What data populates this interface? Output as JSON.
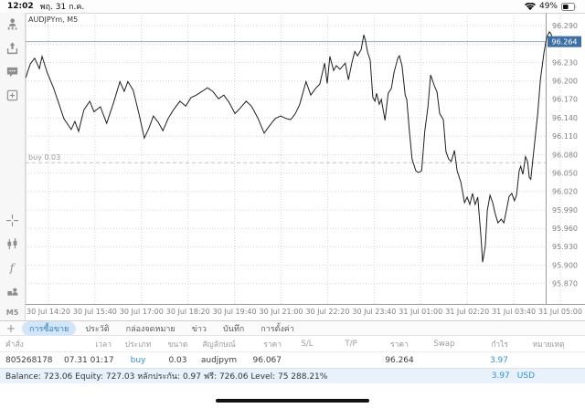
{
  "status_bar": {
    "time": "12:02",
    "date": "พฤ. 31 ก.ค.",
    "battery": "49%"
  },
  "sidebar": {
    "icons": [
      "account-stats",
      "share-up",
      "chat",
      "new-window",
      "crosshair",
      "chart-type",
      "indicators",
      "objects"
    ],
    "timeframe": "M5"
  },
  "chart": {
    "title": "AUDJPYm, M5",
    "position_label": "buy 0.03",
    "current_price_label": "96.264",
    "colors": {
      "line": "#1e1e1e",
      "grid": "#d4d4d4",
      "axis": "#9a9a9a",
      "current_price_line": "#93a9c4",
      "badge": "#3d6fa5",
      "buy_line": "#c2c2c2",
      "tick_text": "#808080"
    }
  },
  "chart_data": {
    "type": "line",
    "title": "AUDJPYm, M5",
    "symbol": "AUDJPYm",
    "timeframe": "M5",
    "ylabel": "price",
    "ylim": [
      95.837,
      96.311
    ],
    "grid": true,
    "y_ticks": [
      "96.290",
      "96.260",
      "96.230",
      "96.200",
      "96.170",
      "96.140",
      "96.110",
      "96.080",
      "96.050",
      "96.020",
      "95.990",
      "95.960",
      "95.930",
      "95.900",
      "95.870"
    ],
    "x_ticks": [
      "30 Jul 14:20",
      "30 Jul 15:40",
      "30 Jul 17:00",
      "30 Jul 18:20",
      "30 Jul 19:40",
      "30 Jul 21:00",
      "30 Jul 22:20",
      "30 Jul 23:40",
      "31 Jul 01:00",
      "31 Jul 02:20",
      "31 Jul 03:40",
      "31 Jul 05:00"
    ],
    "current_price": 96.264,
    "buy_line_price": 96.067,
    "points": [
      [
        0.0,
        96.205
      ],
      [
        0.009,
        96.228
      ],
      [
        0.017,
        96.237
      ],
      [
        0.026,
        96.22
      ],
      [
        0.031,
        96.24
      ],
      [
        0.041,
        96.213
      ],
      [
        0.052,
        96.19
      ],
      [
        0.062,
        96.165
      ],
      [
        0.072,
        96.139
      ],
      [
        0.086,
        96.121
      ],
      [
        0.093,
        96.134
      ],
      [
        0.1,
        96.118
      ],
      [
        0.11,
        96.153
      ],
      [
        0.121,
        96.167
      ],
      [
        0.129,
        96.15
      ],
      [
        0.141,
        96.158
      ],
      [
        0.153,
        96.131
      ],
      [
        0.166,
        96.165
      ],
      [
        0.178,
        96.199
      ],
      [
        0.186,
        96.183
      ],
      [
        0.193,
        96.199
      ],
      [
        0.203,
        96.185
      ],
      [
        0.214,
        96.146
      ],
      [
        0.224,
        96.107
      ],
      [
        0.233,
        96.124
      ],
      [
        0.241,
        96.143
      ],
      [
        0.25,
        96.133
      ],
      [
        0.259,
        96.119
      ],
      [
        0.269,
        96.139
      ],
      [
        0.279,
        96.153
      ],
      [
        0.291,
        96.167
      ],
      [
        0.302,
        96.159
      ],
      [
        0.312,
        96.173
      ],
      [
        0.322,
        96.177
      ],
      [
        0.333,
        96.183
      ],
      [
        0.343,
        96.189
      ],
      [
        0.353,
        96.183
      ],
      [
        0.364,
        96.171
      ],
      [
        0.374,
        96.177
      ],
      [
        0.384,
        96.165
      ],
      [
        0.395,
        96.147
      ],
      [
        0.405,
        96.156
      ],
      [
        0.416,
        96.167
      ],
      [
        0.426,
        96.159
      ],
      [
        0.438,
        96.14
      ],
      [
        0.45,
        96.115
      ],
      [
        0.46,
        96.127
      ],
      [
        0.471,
        96.139
      ],
      [
        0.481,
        96.143
      ],
      [
        0.491,
        96.139
      ],
      [
        0.5,
        96.137
      ],
      [
        0.509,
        96.147
      ],
      [
        0.517,
        96.162
      ],
      [
        0.529,
        96.199
      ],
      [
        0.538,
        96.177
      ],
      [
        0.547,
        96.188
      ],
      [
        0.555,
        96.195
      ],
      [
        0.564,
        96.229
      ],
      [
        0.569,
        96.196
      ],
      [
        0.574,
        96.24
      ],
      [
        0.581,
        96.217
      ],
      [
        0.586,
        96.225
      ],
      [
        0.593,
        96.219
      ],
      [
        0.603,
        96.229
      ],
      [
        0.609,
        96.202
      ],
      [
        0.616,
        96.232
      ],
      [
        0.621,
        96.248
      ],
      [
        0.626,
        96.241
      ],
      [
        0.633,
        96.251
      ],
      [
        0.638,
        96.275
      ],
      [
        0.641,
        96.266
      ],
      [
        0.645,
        96.247
      ],
      [
        0.65,
        96.234
      ],
      [
        0.655,
        96.173
      ],
      [
        0.659,
        96.167
      ],
      [
        0.662,
        96.18
      ],
      [
        0.667,
        96.162
      ],
      [
        0.671,
        96.17
      ],
      [
        0.678,
        96.136
      ],
      [
        0.684,
        96.18
      ],
      [
        0.69,
        96.188
      ],
      [
        0.695,
        96.214
      ],
      [
        0.702,
        96.237
      ],
      [
        0.705,
        96.241
      ],
      [
        0.71,
        96.225
      ],
      [
        0.716,
        96.177
      ],
      [
        0.719,
        96.17
      ],
      [
        0.724,
        96.118
      ],
      [
        0.729,
        96.073
      ],
      [
        0.736,
        96.054
      ],
      [
        0.741,
        96.051
      ],
      [
        0.747,
        96.054
      ],
      [
        0.753,
        96.118
      ],
      [
        0.759,
        96.158
      ],
      [
        0.764,
        96.21
      ],
      [
        0.771,
        96.192
      ],
      [
        0.776,
        96.182
      ],
      [
        0.781,
        96.147
      ],
      [
        0.788,
        96.137
      ],
      [
        0.793,
        96.085
      ],
      [
        0.798,
        96.073
      ],
      [
        0.803,
        96.069
      ],
      [
        0.809,
        96.087
      ],
      [
        0.814,
        96.054
      ],
      [
        0.821,
        96.035
      ],
      [
        0.828,
        96.002
      ],
      [
        0.833,
        96.011
      ],
      [
        0.838,
        95.999
      ],
      [
        0.843,
        96.017
      ],
      [
        0.848,
        95.999
      ],
      [
        0.853,
        96.011
      ],
      [
        0.859,
        95.946
      ],
      [
        0.862,
        95.905
      ],
      [
        0.867,
        95.931
      ],
      [
        0.871,
        95.99
      ],
      [
        0.876,
        96.014
      ],
      [
        0.881,
        96.002
      ],
      [
        0.886,
        95.983
      ],
      [
        0.891,
        95.969
      ],
      [
        0.897,
        95.975
      ],
      [
        0.902,
        95.969
      ],
      [
        0.907,
        95.99
      ],
      [
        0.912,
        96.012
      ],
      [
        0.917,
        96.017
      ],
      [
        0.922,
        96.005
      ],
      [
        0.926,
        96.014
      ],
      [
        0.931,
        96.054
      ],
      [
        0.934,
        96.061
      ],
      [
        0.938,
        96.048
      ],
      [
        0.943,
        96.077
      ],
      [
        0.947,
        96.068
      ],
      [
        0.95,
        96.043
      ],
      [
        0.953,
        96.04
      ],
      [
        0.96,
        96.098
      ],
      [
        0.966,
        96.147
      ],
      [
        0.971,
        96.202
      ],
      [
        0.978,
        96.247
      ],
      [
        0.983,
        96.271
      ],
      [
        0.988,
        96.28
      ],
      [
        0.991,
        96.277
      ],
      [
        0.995,
        96.263
      ],
      [
        1.0,
        96.262
      ]
    ]
  },
  "bottom": {
    "plus_label": "+",
    "tabs": [
      {
        "label": "การซื้อขาย",
        "selected": true
      },
      {
        "label": "ประวัติ",
        "selected": false
      },
      {
        "label": "กล่องจดหมาย",
        "selected": false
      },
      {
        "label": "ข่าว",
        "selected": false
      },
      {
        "label": "บันทึก",
        "selected": false
      },
      {
        "label": "การตั้งค่า",
        "selected": false
      }
    ],
    "table": {
      "headers": [
        "คำสั่ง",
        "เวลา",
        "ประเภท",
        "ขนาด",
        "สัญลักษณ์",
        "ราคา",
        "S/L",
        "T/P",
        "ราคา",
        "Swap",
        "กำไร",
        "หมายเหตุ"
      ],
      "row": [
        "805268178",
        "07.31 01:17",
        "buy",
        "0.03",
        "audjpym",
        "96.067",
        "",
        "",
        "96.264",
        "",
        "3.97",
        ""
      ]
    },
    "summary": {
      "text": "Balance: 723.06 Equity: 727.03 หลักประกัน: 0.97 ฟรี: 726.06 Level: 75 288.21%",
      "profit": "3.97",
      "currency": "USD"
    }
  }
}
